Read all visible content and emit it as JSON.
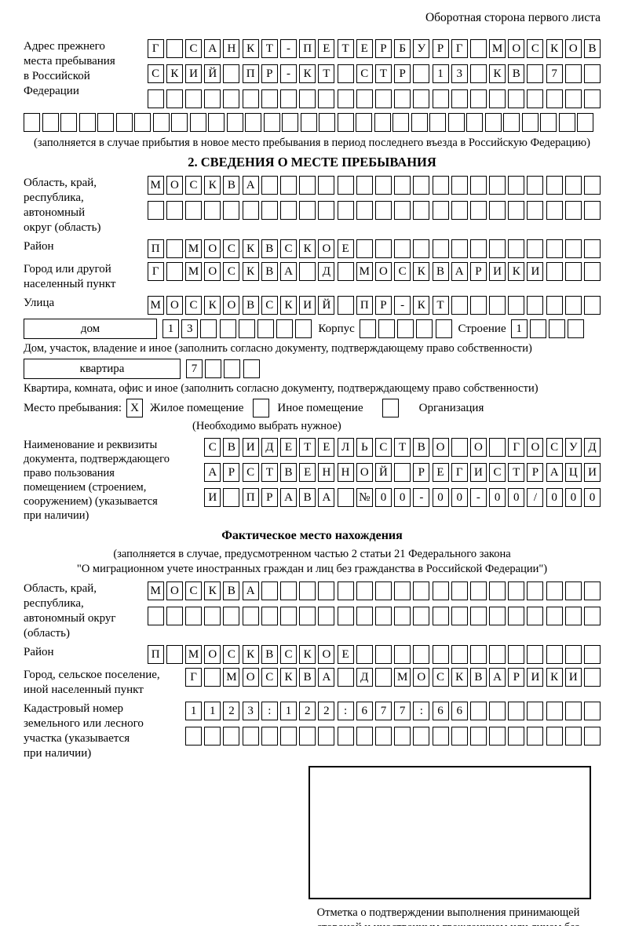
{
  "page": {
    "header_note": "Оборотная сторона первого листа"
  },
  "prev_address": {
    "label_lines": [
      "Адрес прежнего",
      "места пребывания",
      "в Российской",
      "Федерации"
    ],
    "rows": [
      {
        "chars": "Г САНКТ-ПЕТЕРБУРГ МОСКОВ",
        "len": 24
      },
      {
        "chars": "СКИЙ ПР-КТ СТР 13 КВ 7",
        "len": 24
      },
      {
        "chars": "",
        "len": 24
      }
    ],
    "overflow_row": {
      "chars": "",
      "len": 31
    },
    "note": "(заполняется в случае прибытия в новое место пребывания в период последнего въезда в Российскую Федерацию)"
  },
  "section2": {
    "title": "2. СВЕДЕНИЯ О МЕСТЕ ПРЕБЫВАНИЯ",
    "region": {
      "label_lines": [
        "Область, край,",
        "республика,",
        "автономный",
        "округ (область)"
      ],
      "rows": [
        {
          "chars": "МОСКВА",
          "len": 24
        },
        {
          "chars": "",
          "len": 24
        }
      ]
    },
    "district": {
      "label": "Район",
      "row": {
        "chars": "П МОСКВСКОЕ",
        "len": 24
      }
    },
    "city": {
      "label_lines": [
        "Город или другой",
        "населенный пункт"
      ],
      "row": {
        "chars": "Г МОСКВА Д МОСКВАРИКИ",
        "len": 24
      }
    },
    "street": {
      "label": "Улица",
      "row": {
        "chars": "МОСКОВСКИЙ ПР-КТ",
        "len": 24
      }
    },
    "house_line": {
      "house_box_label": "дом",
      "house_cells": {
        "chars": "13",
        "len": 8
      },
      "korpus_label": "Корпус",
      "korpus_cells": {
        "chars": "",
        "len": 5
      },
      "stroenie_label": "Строение",
      "stroenie_cells": {
        "chars": "1",
        "len": 4
      }
    },
    "house_note": "Дом, участок, владение и иное (заполнить согласно документу, подтверждающему право собственности)",
    "apartment_line": {
      "box_label": "квартира",
      "cells": {
        "chars": "7",
        "len": 4
      }
    },
    "apartment_note": "Квартира, комната, офис и иное (заполнить согласно документу, подтверждающему право собственности)",
    "stay_type": {
      "label": "Место пребывания:",
      "options": [
        {
          "label": "Жилое помещение",
          "checked": "X"
        },
        {
          "label": "Иное помещение",
          "checked": ""
        },
        {
          "label": "Организация",
          "checked": ""
        }
      ],
      "note": "(Необходимо выбрать нужное)"
    },
    "document": {
      "label_lines": [
        "Наименование и реквизиты",
        "документа, подтверждающего",
        "право пользования",
        "помещением (строением,",
        "сооружением) (указывается",
        "при наличии)"
      ],
      "rows": [
        {
          "chars": "СВИДЕТЕЛЬСТВО О ГОСУД",
          "len": 21
        },
        {
          "chars": "АРСТВЕННОЙ РЕГИСТРАЦИ",
          "len": 21
        },
        {
          "chars": "И ПРАВА №00-00-00/000",
          "len": 21
        }
      ]
    }
  },
  "actual_location": {
    "title": "Фактическое место нахождения",
    "note_lines": [
      "(заполняется в случае, предусмотренном частью 2 статьи 21 Федерального закона",
      "\"О миграционном учете иностранных граждан и лиц без гражданства в Российской Федерации\")"
    ],
    "region": {
      "label_lines": [
        "Область, край,",
        "республика,",
        "автономный округ",
        "(область)"
      ],
      "rows": [
        {
          "chars": "МОСКВА",
          "len": 24
        },
        {
          "chars": "",
          "len": 24
        }
      ]
    },
    "district": {
      "label": "Район",
      "row": {
        "chars": "П МОСКВСКОЕ",
        "len": 24
      }
    },
    "city": {
      "label_lines": [
        "Город, сельское поселение,",
        "иной населенный пункт"
      ],
      "row": {
        "chars": "Г МОСКВА Д МОСКВАРИКИ",
        "len": 22
      }
    },
    "cadastre": {
      "label_lines": [
        "Кадастровый номер",
        "земельного или лесного",
        "участка (указывается",
        "при наличии)"
      ],
      "rows": [
        {
          "chars": "1123:122:677:66",
          "len": 22
        },
        {
          "chars": "",
          "len": 22
        }
      ]
    },
    "stamp_caption": "Отметка о подтверждении выполнения принимающей стороной и иностранным гражданином или лицом без гражданства действий, необходимых для его постановки на учет по месту пребывания"
  }
}
